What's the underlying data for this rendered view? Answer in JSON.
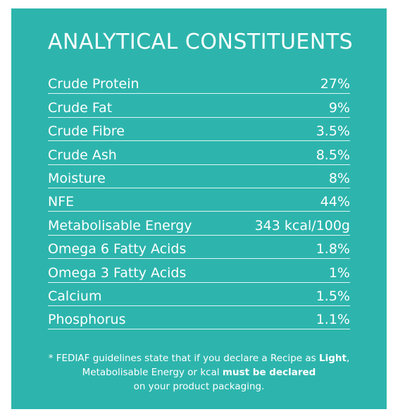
{
  "title": "ANALYTICAL CONSTITUENTS",
  "rows": [
    {
      "label": "Crude Protein",
      "value": "27%"
    },
    {
      "label": "Crude Fat",
      "value": "9%"
    },
    {
      "label": "Crude Fibre",
      "value": "3.5%"
    },
    {
      "label": "Crude Ash",
      "value": "8.5%"
    },
    {
      "label": "Moisture",
      "value": "8%"
    },
    {
      "label": "NFE",
      "value": "44%"
    },
    {
      "label": "Metabolisable Energy",
      "value": "343 kcal/100g"
    },
    {
      "label": "Omega 6 Fatty Acids",
      "value": "1.8%"
    },
    {
      "label": "Omega 3 Fatty Acids",
      "value": "1%"
    },
    {
      "label": "Calcium",
      "value": "1.5%"
    },
    {
      "label": "Phosphorus",
      "value": "1.1%"
    }
  ],
  "note": {
    "part1": "* FEDIAF guidelines state that if you declare a Recipe as ",
    "bold1": "Light",
    "part2": ",",
    "part3": "Metabolisable Energy or kcal ",
    "bold2": "must be declared",
    "part4": "on your product packaging."
  },
  "colors": {
    "panel_background": "#2db5ad",
    "text": "#ffffff"
  }
}
